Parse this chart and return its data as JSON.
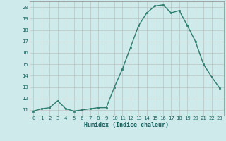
{
  "x": [
    0,
    1,
    2,
    3,
    4,
    5,
    6,
    7,
    8,
    9,
    10,
    11,
    12,
    13,
    14,
    15,
    16,
    17,
    18,
    19,
    20,
    21,
    22,
    23
  ],
  "y": [
    10.9,
    11.1,
    11.2,
    11.8,
    11.1,
    10.9,
    11.0,
    11.1,
    11.2,
    11.2,
    13.0,
    14.6,
    16.5,
    18.4,
    19.5,
    20.1,
    20.2,
    19.5,
    19.7,
    18.4,
    17.0,
    15.0,
    13.9,
    12.9
  ],
  "line_color": "#2e7d6e",
  "marker": "s",
  "markersize": 1.8,
  "linewidth": 1.0,
  "bg_color": "#ceeaea",
  "grid_color_major": "#b8b8b8",
  "grid_color_minor": "#d8d8d8",
  "xlabel": "Humidex (Indice chaleur)",
  "xlabel_color": "#1a6060",
  "xlabel_fontsize": 6.0,
  "tick_fontsize": 5.2,
  "tick_color": "#1a6060",
  "xlim": [
    -0.5,
    23.5
  ],
  "ylim": [
    10.5,
    20.5
  ],
  "yticks": [
    11,
    12,
    13,
    14,
    15,
    16,
    17,
    18,
    19,
    20
  ],
  "xticks": [
    0,
    1,
    2,
    3,
    4,
    5,
    6,
    7,
    8,
    9,
    10,
    11,
    12,
    13,
    14,
    15,
    16,
    17,
    18,
    19,
    20,
    21,
    22,
    23
  ]
}
